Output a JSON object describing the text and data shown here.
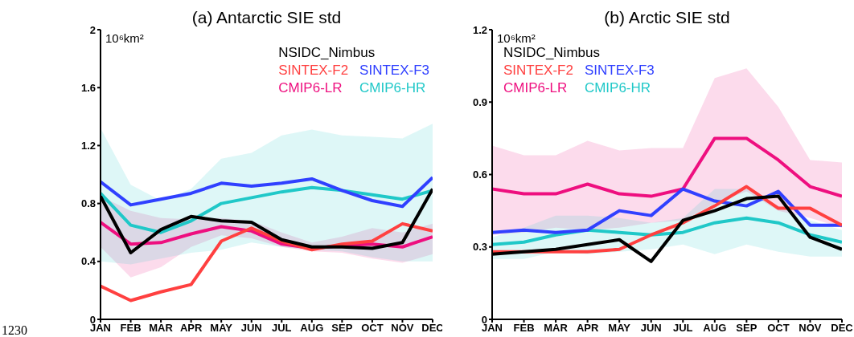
{
  "chart_data": [
    {
      "type": "line",
      "title": "(a) Antarctic SIE std",
      "ylabel": "10⁶km²",
      "annotations": [
        "1230"
      ],
      "categories": [
        "JAN",
        "FEB",
        "MAR",
        "APR",
        "MAY",
        "JUN",
        "JUL",
        "AUG",
        "SEP",
        "OCT",
        "NOV",
        "DEC"
      ],
      "ylim": [
        0,
        2
      ],
      "yticks": [
        0,
        0.4,
        0.8,
        1.2,
        1.6,
        2
      ],
      "legend": "top right",
      "marker": "none",
      "line_style": "solid",
      "series": [
        {
          "name": "NSIDC_Nimbus",
          "color": "#000000",
          "values": [
            0.85,
            0.46,
            0.62,
            0.71,
            0.68,
            0.67,
            0.55,
            0.5,
            0.5,
            0.49,
            0.53,
            0.9
          ]
        },
        {
          "name": "SINTEX-F2",
          "color": "#ff4040",
          "values": [
            0.23,
            0.13,
            0.19,
            0.24,
            0.54,
            0.63,
            0.54,
            0.48,
            0.52,
            0.54,
            0.66,
            0.61
          ]
        },
        {
          "name": "SINTEX-F3",
          "color": "#3040ff",
          "values": [
            0.95,
            0.79,
            0.83,
            0.87,
            0.94,
            0.92,
            0.94,
            0.97,
            0.89,
            0.82,
            0.78,
            0.98
          ]
        },
        {
          "name": "CMIP6-LR",
          "color": "#ee0f7f",
          "values": [
            0.67,
            0.52,
            0.53,
            0.59,
            0.64,
            0.61,
            0.52,
            0.49,
            0.51,
            0.52,
            0.5,
            0.57
          ],
          "lower": [
            0.5,
            0.29,
            0.36,
            0.5,
            0.58,
            0.56,
            0.5,
            0.47,
            0.46,
            0.42,
            0.39,
            0.45
          ],
          "upper": [
            0.85,
            0.75,
            0.7,
            0.69,
            0.7,
            0.68,
            0.6,
            0.53,
            0.57,
            0.63,
            0.6,
            0.66
          ]
        },
        {
          "name": "CMIP6-HR",
          "color": "#20c8c8",
          "values": [
            0.87,
            0.65,
            0.6,
            0.68,
            0.8,
            0.84,
            0.88,
            0.91,
            0.89,
            0.86,
            0.83,
            0.89
          ],
          "lower": [
            0.4,
            0.38,
            0.42,
            0.46,
            0.48,
            0.53,
            0.5,
            0.48,
            0.47,
            0.43,
            0.4,
            0.4
          ],
          "upper": [
            1.32,
            0.93,
            0.82,
            0.9,
            1.11,
            1.15,
            1.27,
            1.31,
            1.27,
            1.26,
            1.25,
            1.35
          ]
        }
      ]
    },
    {
      "type": "line",
      "title": "(b) Arctic SIE std",
      "ylabel": "10⁶km²",
      "categories": [
        "JAN",
        "FEB",
        "MAR",
        "APR",
        "MAY",
        "JUN",
        "JUL",
        "AUG",
        "SEP",
        "OCT",
        "NOV",
        "DEC"
      ],
      "ylim": [
        0,
        1.2
      ],
      "yticks": [
        0,
        0.3,
        0.6,
        0.9,
        1.2
      ],
      "legend": "top left",
      "marker": "none",
      "line_style": "solid",
      "series": [
        {
          "name": "NSIDC_Nimbus",
          "color": "#000000",
          "values": [
            0.27,
            0.28,
            0.29,
            0.31,
            0.33,
            0.24,
            0.41,
            0.45,
            0.5,
            0.51,
            0.34,
            0.29
          ]
        },
        {
          "name": "SINTEX-F2",
          "color": "#ff4040",
          "values": [
            0.28,
            0.28,
            0.28,
            0.28,
            0.29,
            0.35,
            0.4,
            0.47,
            0.55,
            0.46,
            0.46,
            0.39
          ]
        },
        {
          "name": "SINTEX-F3",
          "color": "#3040ff",
          "values": [
            0.36,
            0.37,
            0.36,
            0.37,
            0.45,
            0.43,
            0.54,
            0.49,
            0.47,
            0.53,
            0.39,
            0.39
          ]
        },
        {
          "name": "CMIP6-LR",
          "color": "#ee0f7f",
          "values": [
            0.54,
            0.52,
            0.52,
            0.56,
            0.52,
            0.51,
            0.54,
            0.75,
            0.75,
            0.66,
            0.55,
            0.51
          ],
          "lower": [
            0.35,
            0.36,
            0.38,
            0.37,
            0.38,
            0.4,
            0.41,
            0.48,
            0.53,
            0.45,
            0.42,
            0.38
          ],
          "upper": [
            0.72,
            0.68,
            0.68,
            0.74,
            0.7,
            0.71,
            0.71,
            1.0,
            1.04,
            0.88,
            0.66,
            0.65
          ]
        },
        {
          "name": "CMIP6-HR",
          "color": "#20c8c8",
          "values": [
            0.31,
            0.32,
            0.35,
            0.37,
            0.36,
            0.35,
            0.36,
            0.4,
            0.42,
            0.4,
            0.35,
            0.32
          ],
          "lower": [
            0.25,
            0.25,
            0.28,
            0.27,
            0.28,
            0.29,
            0.31,
            0.27,
            0.31,
            0.28,
            0.26,
            0.26
          ],
          "upper": [
            0.34,
            0.38,
            0.43,
            0.43,
            0.42,
            0.4,
            0.42,
            0.54,
            0.54,
            0.47,
            0.41,
            0.37
          ]
        }
      ]
    }
  ]
}
